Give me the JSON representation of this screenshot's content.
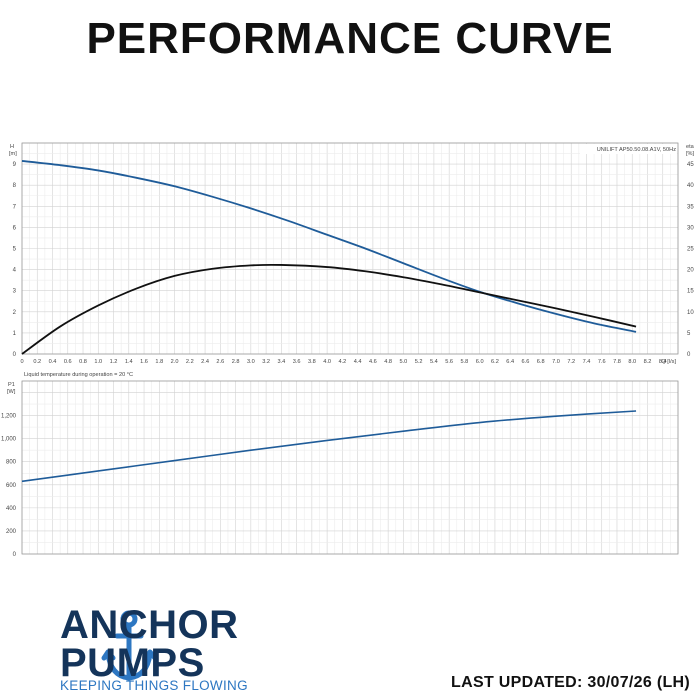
{
  "header": {
    "title": "PERFORMANCE CURVE"
  },
  "brand": {
    "line1": "ANCHOR",
    "line2": "PUMPS",
    "tagline": "KEEPING THINGS FLOWING",
    "colors": {
      "navy": "#14345a",
      "blue": "#2d77c2"
    },
    "icon": "anchor-icon"
  },
  "footer": {
    "last_updated": "LAST UPDATED: 30/07/26 (LH)"
  },
  "chart_data": [
    {
      "type": "line",
      "model_label": "UNILIFT AP50.50.08.A1V, 50Hz",
      "xlabel": "Q [l/s]",
      "ylabel_left": "H\n[m]",
      "ylabel_right": "eta\n[%]",
      "xlim": [
        0,
        8.6
      ],
      "ylim_left": [
        0,
        10
      ],
      "ylim_right": [
        0,
        50
      ],
      "x_ticks": [
        "0",
        "0.2",
        "0.4",
        "0.6",
        "0.8",
        "1.0",
        "1.2",
        "1.4",
        "1.6",
        "1.8",
        "2.0",
        "2.2",
        "2.4",
        "2.6",
        "2.8",
        "3.0",
        "3.2",
        "3.4",
        "3.6",
        "3.8",
        "4.0",
        "4.2",
        "4.4",
        "4.6",
        "4.8",
        "5.0",
        "5.2",
        "5.4",
        "5.6",
        "5.8",
        "6.0",
        "6.2",
        "6.4",
        "6.6",
        "6.8",
        "7.0",
        "7.2",
        "7.4",
        "7.6",
        "7.8",
        "8.0",
        "8.2",
        "8.4"
      ],
      "y_ticks_left": [
        "0",
        "1",
        "2",
        "3",
        "4",
        "5",
        "6",
        "7",
        "8",
        "9"
      ],
      "y_ticks_right": [
        "0",
        "5",
        "10",
        "15",
        "20",
        "25",
        "30",
        "35",
        "40",
        "45"
      ],
      "grid": true,
      "series": [
        {
          "axis": "left",
          "color": "#1f5c99",
          "x": [
            0,
            0.5,
            1.0,
            1.5,
            2.0,
            2.5,
            3.0,
            3.5,
            4.0,
            4.5,
            5.0,
            5.5,
            6.0,
            6.5,
            7.0,
            7.5,
            8.05
          ],
          "y": [
            9.15,
            8.95,
            8.7,
            8.35,
            7.95,
            7.45,
            6.9,
            6.3,
            5.65,
            5.0,
            4.3,
            3.6,
            2.95,
            2.4,
            1.9,
            1.45,
            1.05
          ]
        },
        {
          "axis": "right",
          "color": "#111111",
          "x": [
            0,
            0.5,
            1.0,
            1.5,
            2.0,
            2.5,
            3.0,
            3.4,
            4.0,
            4.5,
            5.0,
            5.5,
            6.0,
            6.5,
            7.0,
            7.5,
            8.05
          ],
          "y": [
            0,
            6.5,
            11.5,
            15.5,
            18.5,
            20.2,
            21.0,
            21.1,
            20.6,
            19.6,
            18.2,
            16.5,
            14.6,
            12.7,
            10.8,
            8.8,
            6.5
          ]
        }
      ]
    },
    {
      "type": "line",
      "note": "Liquid temperature during operation = 20 °C",
      "ylabel": "P1\n[W]",
      "xlim": [
        0,
        8.6
      ],
      "ylim": [
        0,
        1500
      ],
      "y_ticks": [
        "0",
        "200",
        "400",
        "600",
        "800",
        "1,000",
        "1,200"
      ],
      "grid": true,
      "series": [
        {
          "color": "#1f5c99",
          "x": [
            0,
            1.0,
            2.0,
            3.0,
            4.0,
            5.0,
            6.0,
            7.0,
            8.05
          ],
          "y": [
            630,
            720,
            810,
            900,
            985,
            1065,
            1140,
            1195,
            1240
          ]
        }
      ]
    }
  ]
}
